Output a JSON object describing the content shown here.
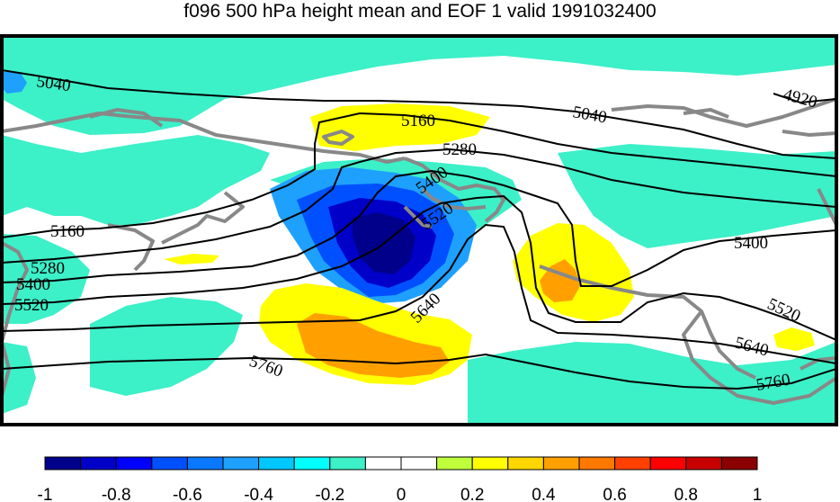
{
  "title": "f096 500 hPa height mean and EOF 1 valid 1991032400",
  "contour_labels": {
    "c5040a": "5040",
    "c5040b": "5040",
    "c4920": "4920",
    "c5160a": "5160",
    "c5160b": "5160",
    "c5280a": "5280",
    "c5280b": "5280",
    "c5400a": "5400",
    "c5400b": "5400",
    "c5400c": "5400",
    "c5520a": "5520",
    "c5520b": "5520",
    "c5520c": "5520",
    "c5640a": "5640",
    "c5640b": "5640",
    "c5760a": "5760",
    "c5760b": "5760"
  },
  "colorbar": {
    "ticks": [
      "-1",
      "-0.8",
      "-0.6",
      "-0.4",
      "-0.2",
      "0",
      "0.2",
      "0.4",
      "0.6",
      "0.8",
      "1"
    ],
    "colors": [
      "#00008a",
      "#0000c8",
      "#0000ff",
      "#0050ff",
      "#0a78ff",
      "#1ea0ff",
      "#00c8ff",
      "#00ffff",
      "#3cf0c8",
      "#ffffff",
      "#ffffff",
      "#c0ff3c",
      "#ffff00",
      "#ffd700",
      "#ffa000",
      "#ff7800",
      "#ff4000",
      "#ff0000",
      "#c80000",
      "#8a0000"
    ]
  },
  "colors": {
    "teal": "#3cf0c8",
    "yellow": "#ffff00",
    "orange": "#ffa000",
    "light_blue": "#1ea0ff",
    "mid_blue": "#0050ff",
    "deep_blue": "#0000c8",
    "navy": "#00008a",
    "coast": "#888888"
  }
}
